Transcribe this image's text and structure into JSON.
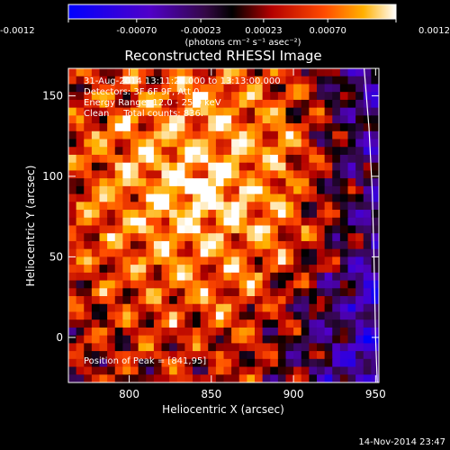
{
  "chart_data": {
    "type": "heatmap",
    "title": "Reconstructed RHESSI Image",
    "xlabel": "Heliocentric X (arcsec)",
    "ylabel": "Heliocentric Y (arcsec)",
    "xlim": [
      763,
      952
    ],
    "ylim": [
      -28,
      167
    ],
    "xticks": [
      800,
      850,
      900,
      950
    ],
    "yticks": [
      0,
      50,
      100,
      150
    ],
    "colorbar": {
      "range": [
        -0.0012,
        0.0012
      ],
      "ticks": [
        "-0.0012",
        "-0.00070",
        "-0.00023",
        "0.00023",
        "0.00070",
        "0.0012"
      ],
      "unit_label": "(photons cm⁻² s⁻¹ asec⁻²)"
    },
    "info": {
      "time": "31-Aug-2014 13:11:20.000 to 13:13:00.000",
      "detectors": "Detectors: 3F 6F 9F, Att 0",
      "energy": "Energy Range: 12.0 - 25.0 keV",
      "clean": "Clean     Total counts: 836.",
      "peak": "Position of Peak = [841,95]"
    },
    "peak": [
      841,
      95
    ],
    "limb_points": [
      [
        943,
        167
      ],
      [
        946,
        130
      ],
      [
        948,
        90
      ],
      [
        949,
        50
      ],
      [
        950,
        0
      ],
      [
        951,
        -28
      ]
    ],
    "footer_date": "14-Nov-2014 23:47"
  }
}
